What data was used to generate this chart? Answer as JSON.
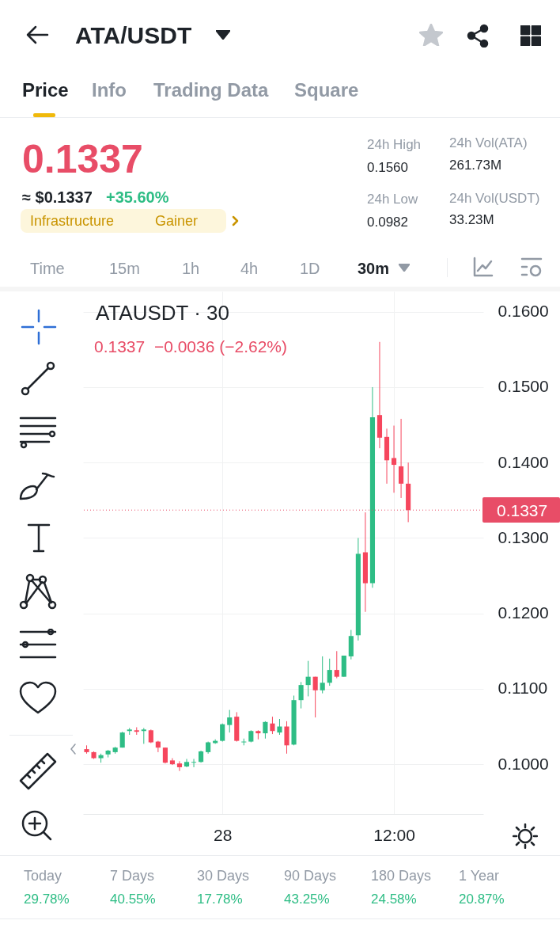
{
  "chart_data": {
    "type": "candlestick",
    "title": "ATAUSDT · 30",
    "subtitle": "0.1337  −0.0036 (−2.62%)",
    "categories": [
      null,
      null,
      null,
      null,
      null,
      null,
      null,
      null,
      null,
      null,
      null,
      null,
      null,
      null,
      null,
      null,
      null,
      null,
      null,
      "28",
      null,
      null,
      null,
      null,
      null,
      null,
      null,
      null,
      null,
      null,
      null,
      null,
      null,
      null,
      null,
      null,
      null,
      null,
      null,
      null,
      null,
      null,
      null,
      "12:00",
      null,
      null
    ],
    "ohlc": [
      [
        0.102,
        0.1025,
        0.1014,
        0.1016
      ],
      [
        0.1016,
        0.1017,
        0.1007,
        0.1008
      ],
      [
        0.1008,
        0.1014,
        0.1002,
        0.1012
      ],
      [
        0.1013,
        0.1019,
        0.1009,
        0.1018
      ],
      [
        0.1016,
        0.1023,
        0.1014,
        0.1022
      ],
      [
        0.1022,
        0.1043,
        0.1022,
        0.1042
      ],
      [
        0.1044,
        0.1048,
        0.1039,
        0.1046
      ],
      [
        0.1045,
        0.1049,
        0.1039,
        0.1043
      ],
      [
        0.1044,
        0.1048,
        0.1027,
        0.1046
      ],
      [
        0.1045,
        0.1046,
        0.1028,
        0.1029
      ],
      [
        0.103,
        0.1031,
        0.1016,
        0.1022
      ],
      [
        0.1022,
        0.1022,
        0.1001,
        0.1002
      ],
      [
        0.1005,
        0.1008,
        0.0999,
        0.1
      ],
      [
        0.1001,
        0.1004,
        0.0991,
        0.0996
      ],
      [
        0.0997,
        0.1007,
        0.0996,
        0.1003
      ],
      [
        0.1002,
        0.1007,
        0.0996,
        0.1003
      ],
      [
        0.1003,
        0.1018,
        0.1002,
        0.1017
      ],
      [
        0.1016,
        0.103,
        0.1014,
        0.1029
      ],
      [
        0.1028,
        0.1033,
        0.1027,
        0.1031
      ],
      [
        0.1031,
        0.1054,
        0.103,
        0.1053
      ],
      [
        0.1052,
        0.1072,
        0.1042,
        0.1062
      ],
      [
        0.1063,
        0.1069,
        0.103,
        0.1031
      ],
      [
        0.1029,
        0.1034,
        0.1025,
        0.103
      ],
      [
        0.103,
        0.1045,
        0.1029,
        0.1044
      ],
      [
        0.1044,
        0.1045,
        0.1033,
        0.1041
      ],
      [
        0.1041,
        0.1057,
        0.1034,
        0.1056
      ],
      [
        0.1054,
        0.1063,
        0.104,
        0.1044
      ],
      [
        0.1042,
        0.106,
        0.1039,
        0.105
      ],
      [
        0.105,
        0.1057,
        0.1014,
        0.1025
      ],
      [
        0.1026,
        0.1091,
        0.1025,
        0.1085
      ],
      [
        0.1085,
        0.1109,
        0.1074,
        0.1105
      ],
      [
        0.1105,
        0.1137,
        0.109,
        0.1116
      ],
      [
        0.1116,
        0.1116,
        0.1062,
        0.1098
      ],
      [
        0.1098,
        0.1143,
        0.1094,
        0.1108
      ],
      [
        0.1108,
        0.114,
        0.1104,
        0.1125
      ],
      [
        0.1125,
        0.115,
        0.1114,
        0.1116
      ],
      [
        0.1116,
        0.1144,
        0.1116,
        0.1144
      ],
      [
        0.1143,
        0.1178,
        0.1139,
        0.117
      ],
      [
        0.1171,
        0.13,
        0.1164,
        0.1279
      ],
      [
        0.1281,
        0.1334,
        0.1202,
        0.124
      ],
      [
        0.124,
        0.15,
        0.1234,
        0.146
      ],
      [
        0.1463,
        0.156,
        0.1419,
        0.1433
      ],
      [
        0.1434,
        0.1445,
        0.1372,
        0.1403
      ],
      [
        0.1406,
        0.1449,
        0.136,
        0.1397
      ],
      [
        0.1395,
        0.1458,
        0.1353,
        0.1372
      ],
      [
        0.1372,
        0.14,
        0.1321,
        0.1337
      ]
    ],
    "colors": [
      "#f6465d",
      "#f6465d",
      "#2ebd85",
      "#2ebd85",
      "#2ebd85",
      "#2ebd85",
      "#2ebd85",
      "#f6465d",
      "#2ebd85",
      "#f6465d",
      "#f6465d",
      "#f6465d",
      "#f6465d",
      "#f6465d",
      "#2ebd85",
      "#2ebd85",
      "#2ebd85",
      "#2ebd85",
      "#2ebd85",
      "#2ebd85",
      "#2ebd85",
      "#f6465d",
      "#2ebd85",
      "#2ebd85",
      "#f6465d",
      "#2ebd85",
      "#f6465d",
      "#2ebd85",
      "#f6465d",
      "#2ebd85",
      "#2ebd85",
      "#2ebd85",
      "#f6465d",
      "#2ebd85",
      "#2ebd85",
      "#f6465d",
      "#2ebd85",
      "#2ebd85",
      "#2ebd85",
      "#f6465d",
      "#2ebd85",
      "#f6465d",
      "#f6465d",
      "#f6465d",
      "#f6465d",
      "#f6465d"
    ],
    "ylim": [
      0.0934,
      0.1627
    ],
    "yticks": [
      {
        "value": 0.1,
        "label": "0.1000"
      },
      {
        "value": 0.11,
        "label": "0.1100"
      },
      {
        "value": 0.12,
        "label": "0.1200"
      },
      {
        "value": 0.13,
        "label": "0.1300"
      },
      {
        "value": 0.14,
        "label": "0.1400"
      },
      {
        "value": 0.15,
        "label": "0.1500"
      },
      {
        "value": 0.16,
        "label": "0.1600"
      }
    ],
    "grid": true,
    "ref_lines": [
      {
        "axis": "y",
        "value": 0.1337,
        "label": "0.1337",
        "color": "#e84d67",
        "line_style": "dotted"
      }
    ],
    "annotations": [
      "ATA/USDT",
      "Price",
      "Info",
      "Trading Data",
      "Square",
      "0.1337",
      "≈ $0.1337",
      "+35.60%",
      "Infrastructure",
      "Gainer",
      "24h High",
      "0.1560",
      "24h Vol(ATA)",
      "261.73M",
      "24h Low",
      "0.0982",
      "24h Vol(USDT)",
      "33.23M",
      "Time",
      "15m",
      "1h",
      "4h",
      "1D",
      "30m",
      "Today",
      "29.78%",
      "7 Days",
      "40.55%",
      "30 Days",
      "17.78%",
      "90 Days",
      "43.25%",
      "180 Days",
      "24.58%",
      "1 Year",
      "20.87%"
    ]
  }
}
